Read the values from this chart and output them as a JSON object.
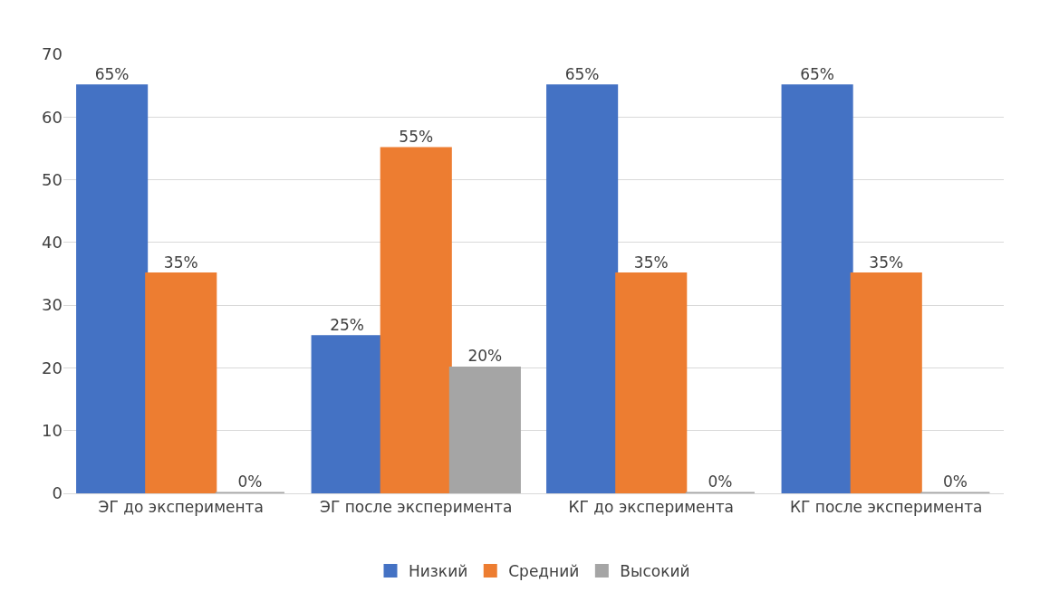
{
  "chart_data": {
    "type": "bar",
    "categories": [
      "ЭГ до эксперимента",
      "ЭГ после эксперимента",
      "КГ до эксперимента",
      "КГ после эксперимента"
    ],
    "series": [
      {
        "name": "Низкий",
        "color": "#4472c4",
        "values": [
          65,
          25,
          65,
          65
        ],
        "value_labels": [
          "65%",
          "25%",
          "65%",
          "65%"
        ]
      },
      {
        "name": "Средний",
        "color": "#ed7d31",
        "values": [
          35,
          55,
          35,
          35
        ],
        "value_labels": [
          "35%",
          "55%",
          "35%",
          "35%"
        ]
      },
      {
        "name": "Высокий",
        "color": "#a5a5a5",
        "values": [
          0,
          20,
          0,
          0
        ],
        "value_labels": [
          "0%",
          "20%",
          "0%",
          "0%"
        ]
      }
    ],
    "ylim": [
      0,
      70
    ],
    "yticks": [
      0,
      10,
      20,
      30,
      40,
      50,
      60,
      70
    ],
    "grid": "y",
    "legend": "bottom"
  }
}
